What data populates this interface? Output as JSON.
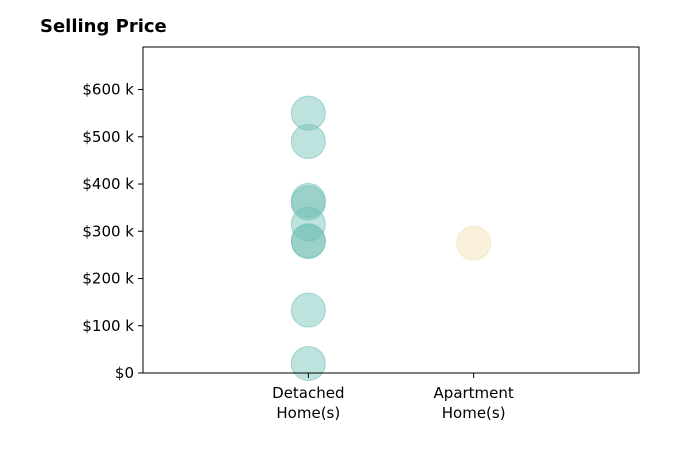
{
  "chart_data": {
    "type": "scatter",
    "title": "Selling Price",
    "xlabel": "",
    "ylabel": "",
    "categories": [
      {
        "line1": "Detached",
        "line2": "Home(s)"
      },
      {
        "line1": "Apartment",
        "line2": "Home(s)"
      }
    ],
    "xlim": [
      -1,
      2
    ],
    "ylim": [
      0,
      690000
    ],
    "y_ticks": [
      {
        "value": 0,
        "label": "$0"
      },
      {
        "value": 100000,
        "label": "$100 k"
      },
      {
        "value": 200000,
        "label": "$200 k"
      },
      {
        "value": 300000,
        "label": "$300 k"
      },
      {
        "value": 400000,
        "label": "$400 k"
      },
      {
        "value": 500000,
        "label": "$500 k"
      },
      {
        "value": 600000,
        "label": "$600 k"
      }
    ],
    "grid": false,
    "legend": "none",
    "series": [
      {
        "category_index": 0,
        "color": "#6fbfb4",
        "values": [
          550000,
          490000,
          365000,
          360000,
          315000,
          280000,
          278000,
          133000,
          20000
        ]
      },
      {
        "category_index": 1,
        "color": "#f5dfae",
        "values": [
          275000
        ]
      }
    ]
  }
}
